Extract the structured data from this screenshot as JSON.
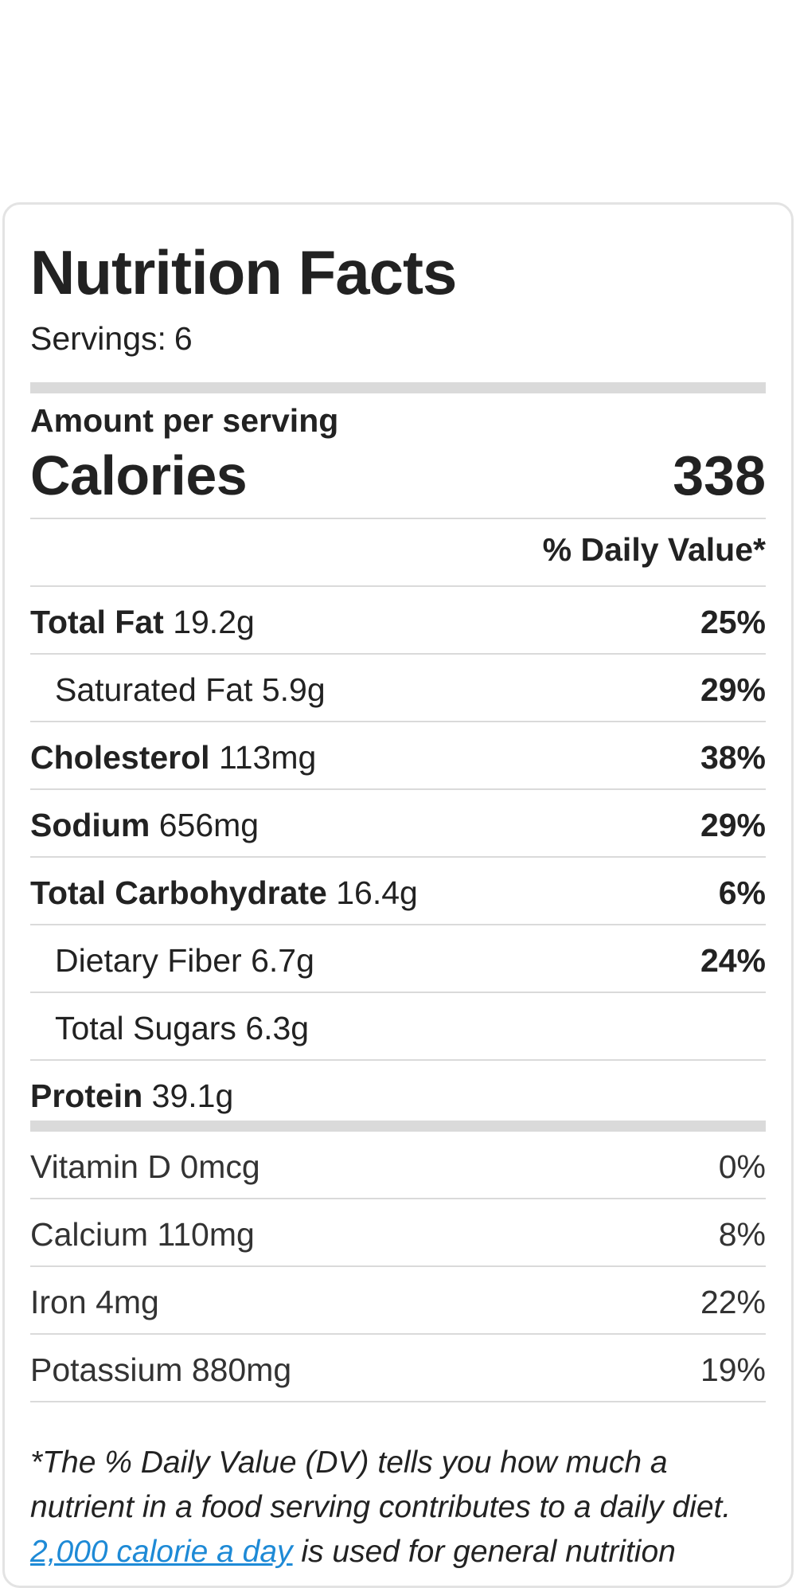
{
  "title": "Nutrition Facts",
  "servings": {
    "label": "Servings:",
    "value": "6"
  },
  "amount_per_serving": "Amount per serving",
  "calories": {
    "label": "Calories",
    "value": "338"
  },
  "daily_value_header": "% Daily Value*",
  "nutrients": [
    {
      "name": "Total Fat",
      "amount": "19.2g",
      "pct": "25%"
    },
    {
      "name": "Saturated Fat",
      "amount": "5.9g",
      "pct": "29%"
    },
    {
      "name": "Cholesterol",
      "amount": "113mg",
      "pct": "38%"
    },
    {
      "name": "Sodium",
      "amount": "656mg",
      "pct": "29%"
    },
    {
      "name": "Total Carbohydrate",
      "amount": "16.4g",
      "pct": "6%"
    },
    {
      "name": "Dietary Fiber",
      "amount": "6.7g",
      "pct": "24%"
    },
    {
      "name": "Total Sugars",
      "amount": "6.3g",
      "pct": ""
    },
    {
      "name": "Protein",
      "amount": "39.1g",
      "pct": ""
    }
  ],
  "vitamins": [
    {
      "name": "Vitamin D",
      "amount": "0mcg",
      "pct": "0%"
    },
    {
      "name": "Calcium",
      "amount": "110mg",
      "pct": "8%"
    },
    {
      "name": "Iron",
      "amount": "4mg",
      "pct": "22%"
    },
    {
      "name": "Potassium",
      "amount": "880mg",
      "pct": "19%"
    }
  ],
  "footnote": {
    "text_before": "*The % Daily Value (DV) tells you how much a nutrient in a food serving contributes to a daily diet. ",
    "link_text": "2,000 calorie a day",
    "text_after": " is used for general nutrition"
  },
  "colors": {
    "text": "#222222",
    "divider": "#dadada",
    "card_border": "#e3e3e3",
    "link": "#1e8ad6"
  }
}
